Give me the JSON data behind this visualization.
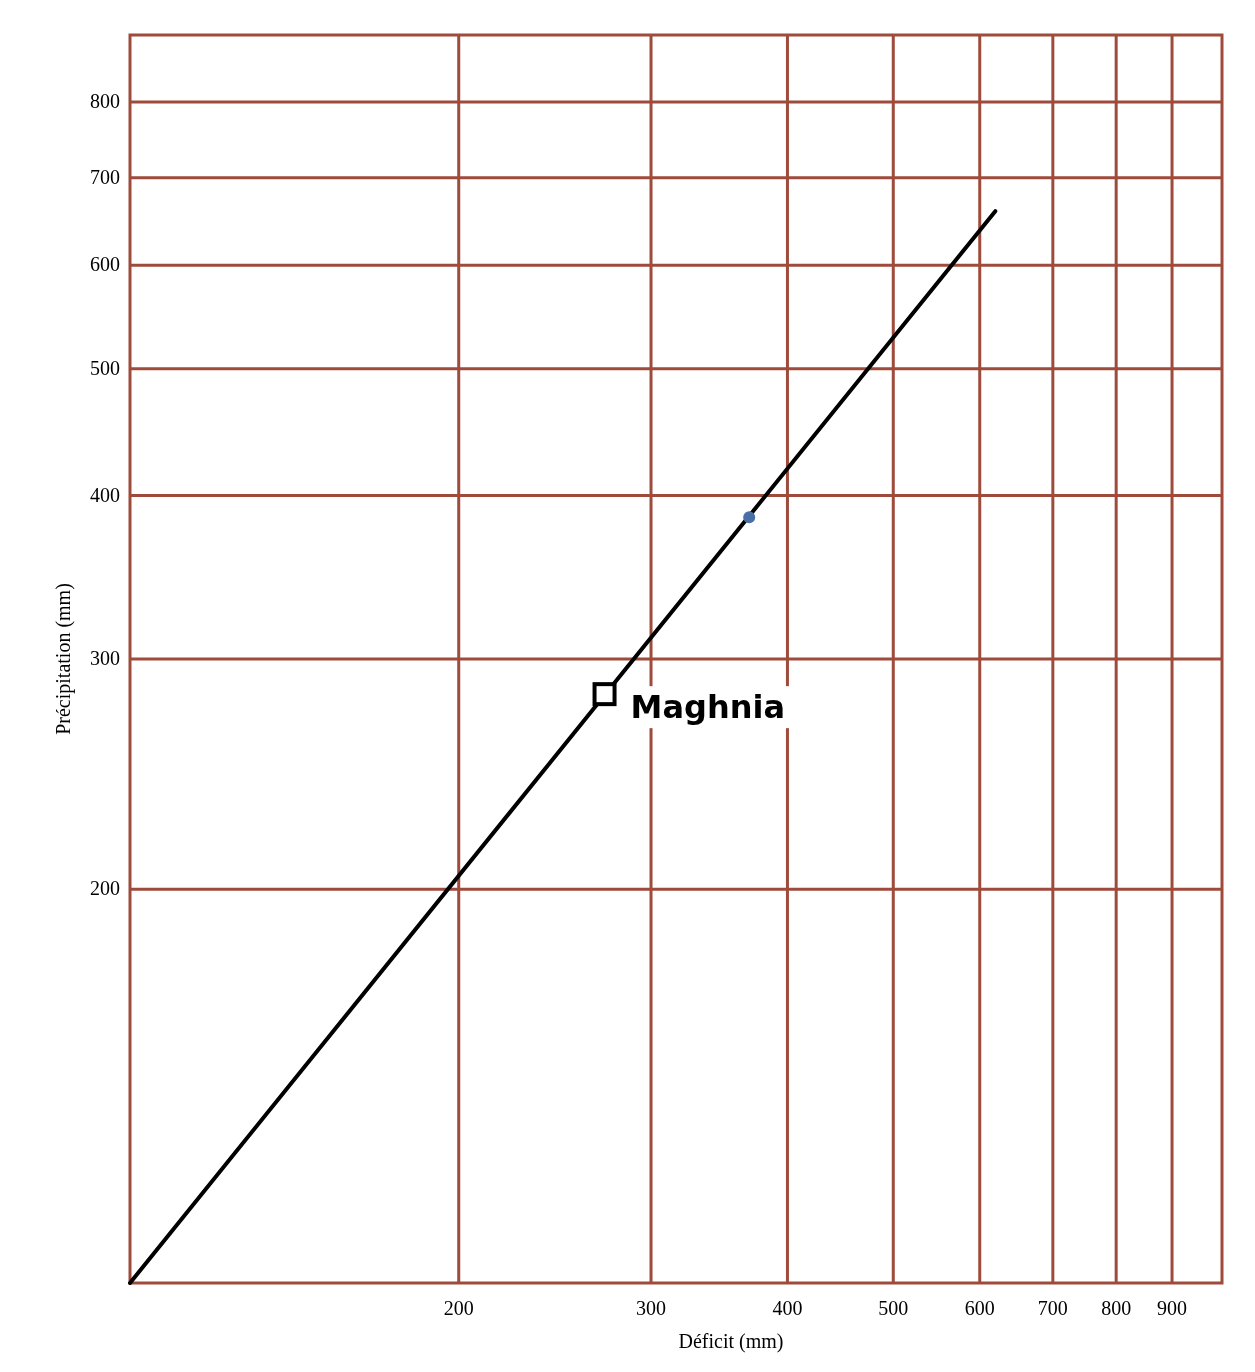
{
  "chart_data": {
    "type": "line",
    "xlabel": "Déficit (mm)",
    "ylabel": "Précipitation (mm)",
    "log": "xy",
    "grid": true,
    "xlim": [
      100,
      1000
    ],
    "ylim": [
      100,
      900
    ],
    "xticks": [
      200,
      300,
      400,
      500,
      600,
      700,
      800,
      900
    ],
    "yticks": [
      200,
      300,
      400,
      500,
      600,
      700,
      800
    ],
    "series": [
      {
        "color": "#000000",
        "x": [
          100,
          620
        ],
        "values": [
          100,
          660
        ],
        "marker": "none"
      },
      {
        "type": "scatter",
        "color": "#4a6fa5",
        "x": [
          369
        ],
        "values": [
          385
        ],
        "marker": "circle"
      },
      {
        "type": "scatter",
        "name": "Maghnia",
        "color": "#000000",
        "x": [
          272
        ],
        "values": [
          282
        ],
        "marker": "square"
      }
    ]
  }
}
